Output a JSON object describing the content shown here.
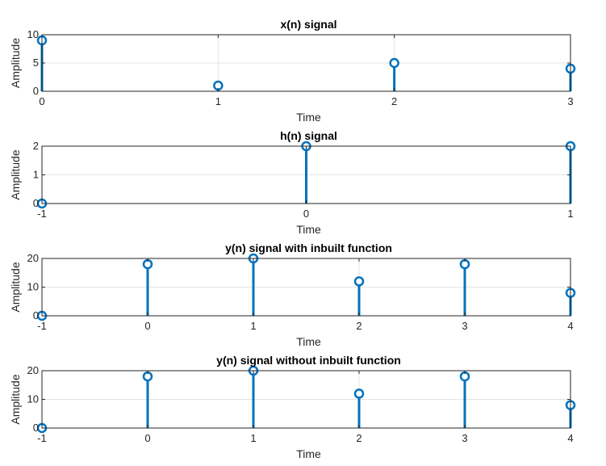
{
  "chart_data": [
    {
      "type": "stem",
      "title": "x(n) signal",
      "xlabel": "Time",
      "ylabel": "Amplitude",
      "xlim": [
        0,
        3
      ],
      "ylim": [
        0,
        10
      ],
      "xticks": [
        "0",
        "1",
        "2",
        "3"
      ],
      "yticks": [
        "0",
        "5",
        "10"
      ],
      "x": [
        0,
        1,
        2,
        3
      ],
      "values": [
        9,
        1,
        5,
        4
      ],
      "grid": true,
      "color": "#0072BD"
    },
    {
      "type": "stem",
      "title": "h(n) signal",
      "xlabel": "Time",
      "ylabel": "Amplitude",
      "xlim": [
        -1,
        1
      ],
      "ylim": [
        0,
        2
      ],
      "xticks": [
        "-1",
        "0",
        "1"
      ],
      "yticks": [
        "0",
        "1",
        "2"
      ],
      "x": [
        -1,
        0,
        1
      ],
      "values": [
        0,
        2,
        2
      ],
      "grid": true,
      "color": "#0072BD"
    },
    {
      "type": "stem",
      "title": "y(n) signal with inbuilt function",
      "xlabel": "Time",
      "ylabel": "Amplitude",
      "xlim": [
        -1,
        4
      ],
      "ylim": [
        0,
        20
      ],
      "xticks": [
        "-1",
        "0",
        "1",
        "2",
        "3",
        "4"
      ],
      "yticks": [
        "0",
        "10",
        "20"
      ],
      "x": [
        -1,
        0,
        1,
        2,
        3,
        4
      ],
      "values": [
        0,
        18,
        20,
        12,
        18,
        8
      ],
      "grid": true,
      "color": "#0072BD"
    },
    {
      "type": "stem",
      "title": "y(n) signal without inbuilt function",
      "xlabel": "Time",
      "ylabel": "Amplitude",
      "xlim": [
        -1,
        4
      ],
      "ylim": [
        0,
        20
      ],
      "xticks": [
        "-1",
        "0",
        "1",
        "2",
        "3",
        "4"
      ],
      "yticks": [
        "0",
        "10",
        "20"
      ],
      "x": [
        -1,
        0,
        1,
        2,
        3,
        4
      ],
      "values": [
        0,
        18,
        20,
        12,
        18,
        8
      ],
      "grid": true,
      "color": "#0072BD"
    }
  ]
}
